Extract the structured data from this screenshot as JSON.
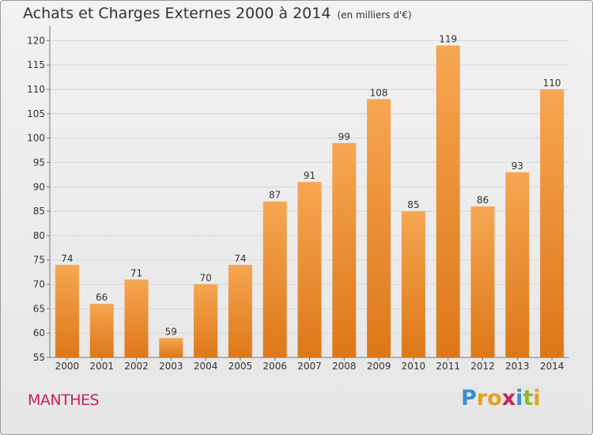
{
  "title": "Achats et Charges Externes 2000 à 2014",
  "subtitle": "(en milliers d'€)",
  "commune": "MANTHES",
  "logo": {
    "letters": [
      "P",
      "r",
      "o",
      "x",
      "i",
      "t",
      "i"
    ],
    "colors": [
      "#3a8fd0",
      "#e8a020",
      "#e8a020",
      "#cc2255",
      "#3a8fd0",
      "#8cbb2a",
      "#e8a020"
    ]
  },
  "chart_data": {
    "type": "bar",
    "categories": [
      "2000",
      "2001",
      "2002",
      "2003",
      "2004",
      "2005",
      "2006",
      "2007",
      "2008",
      "2009",
      "2010",
      "2011",
      "2012",
      "2013",
      "2014"
    ],
    "values": [
      74,
      66,
      71,
      59,
      70,
      74,
      87,
      91,
      99,
      108,
      85,
      119,
      86,
      93,
      110
    ],
    "data_labels": [
      "74",
      "66",
      "71",
      "59",
      "70",
      "74",
      "87",
      "91",
      "99",
      "108",
      "85",
      "119",
      "86",
      "93",
      "110"
    ],
    "yticks": [
      "55",
      "60",
      "65",
      "70",
      "75",
      "80",
      "85",
      "90",
      "95",
      "100",
      "105",
      "110",
      "115",
      "120"
    ],
    "ylim": [
      55,
      122
    ],
    "grid": true,
    "bar_color_top": "#f6a652",
    "bar_color_bottom": "#dd7818"
  }
}
